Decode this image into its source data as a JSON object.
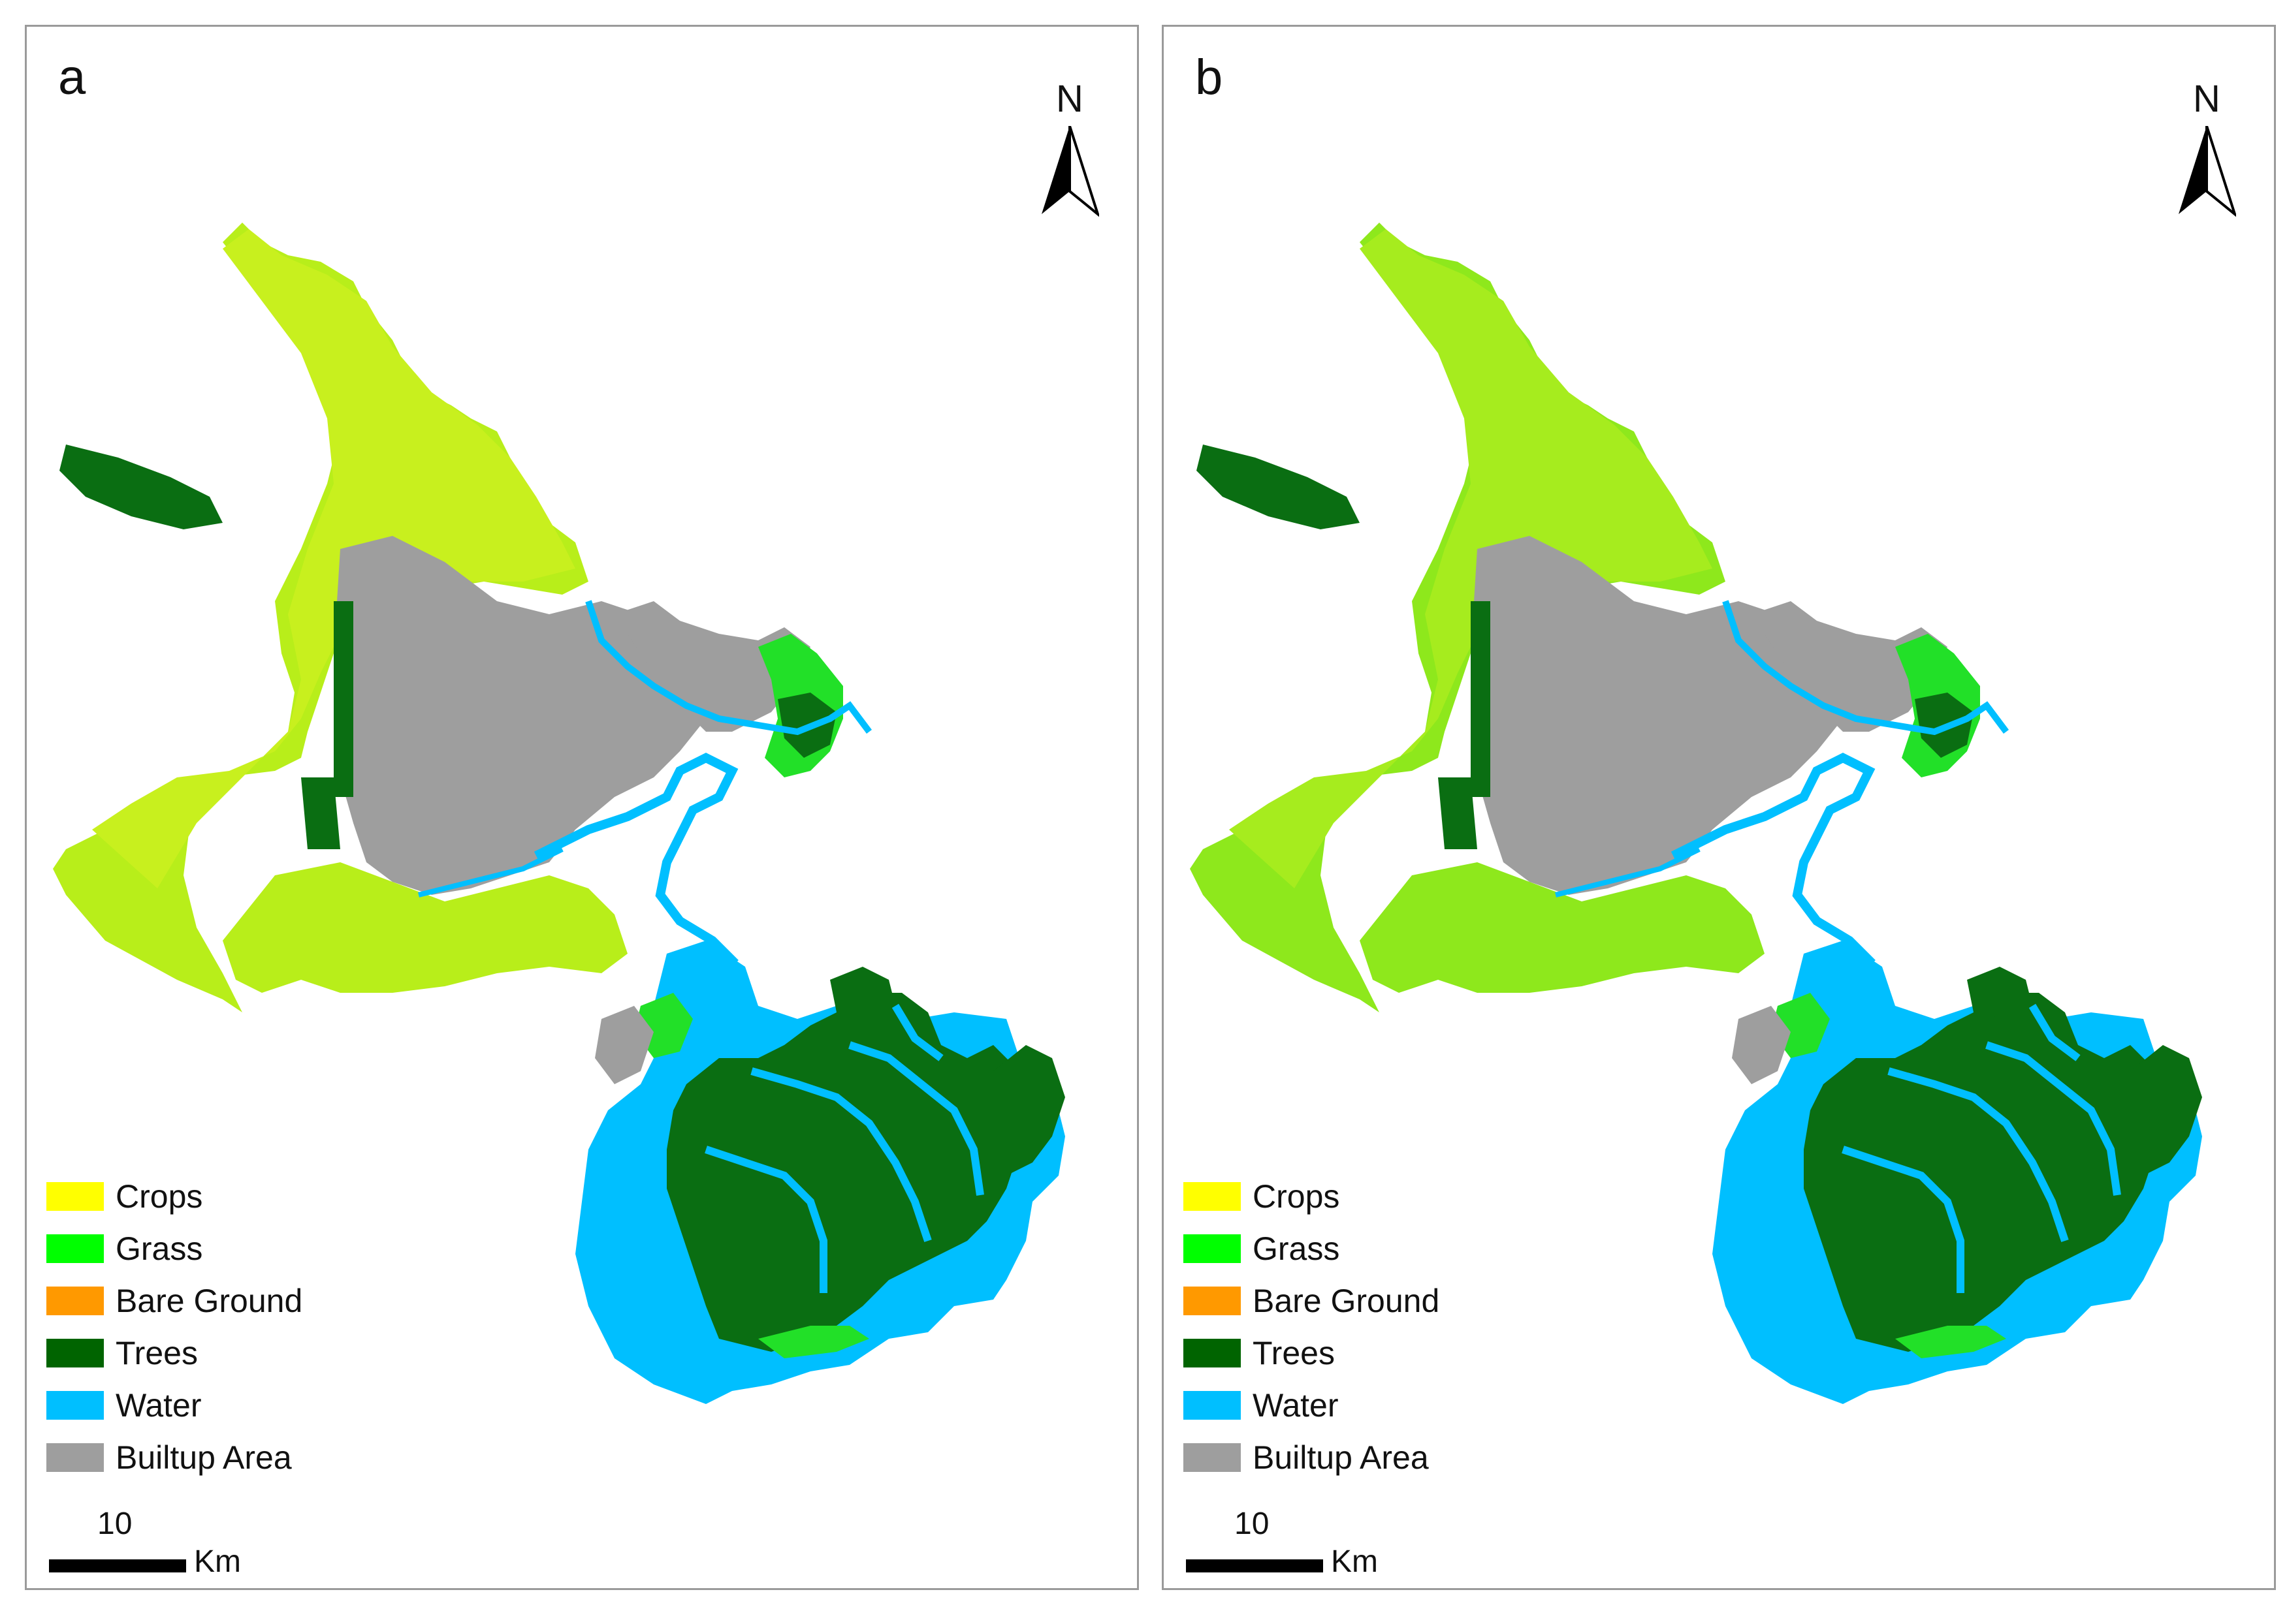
{
  "colors": {
    "crops": "#ffff00",
    "grass": "#00ff00",
    "bare_ground": "#ff9900",
    "trees": "#006400",
    "water": "#00bfff",
    "builtup": "#9e9e9e"
  },
  "panels": [
    {
      "letter": "a",
      "north": "N",
      "legend": [
        {
          "label": "Crops",
          "color": "#ffff00"
        },
        {
          "label": "Grass",
          "color": "#00ff00"
        },
        {
          "label": "Bare Ground",
          "color": "#ff9900"
        },
        {
          "label": "Trees",
          "color": "#006400"
        },
        {
          "label": "Water",
          "color": "#00bfff"
        },
        {
          "label": "Builtup Area",
          "color": "#9e9e9e"
        }
      ],
      "scale": {
        "value": "10",
        "unit": "Km"
      }
    },
    {
      "letter": "b",
      "north": "N",
      "legend": [
        {
          "label": "Crops",
          "color": "#ffff00"
        },
        {
          "label": "Grass",
          "color": "#00ff00"
        },
        {
          "label": "Bare Ground",
          "color": "#ff9900"
        },
        {
          "label": "Trees",
          "color": "#006400"
        },
        {
          "label": "Water",
          "color": "#00bfff"
        },
        {
          "label": "Builtup Area",
          "color": "#9e9e9e"
        }
      ],
      "scale": {
        "value": "10",
        "unit": "Km"
      }
    }
  ]
}
